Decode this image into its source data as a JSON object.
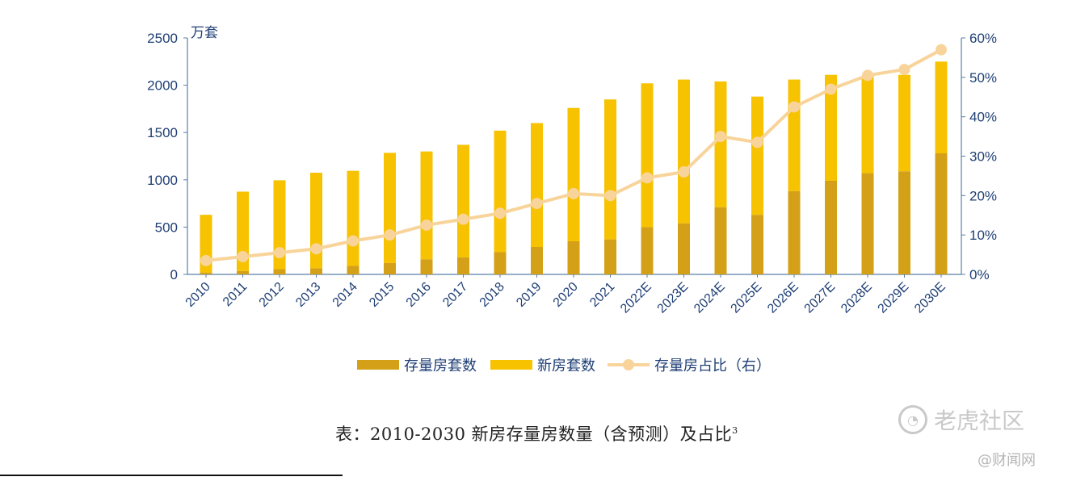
{
  "chart_data": {
    "type": "bar",
    "stacked": true,
    "y_left_unit": "万套",
    "ylim": [
      0,
      2500
    ],
    "y_left_ticks": [
      "0",
      "500",
      "1000",
      "1500",
      "2000",
      "2500"
    ],
    "y_right_lim": [
      0,
      60
    ],
    "y_right_ticks": [
      "0%",
      "10%",
      "20%",
      "30%",
      "40%",
      "50%",
      "60%"
    ],
    "categories": [
      "2010",
      "2011",
      "2012",
      "2013",
      "2014",
      "2015",
      "2016",
      "2017",
      "2018",
      "2019",
      "2020",
      "2021",
      "2022E",
      "2023E",
      "2024E",
      "2025E",
      "2026E",
      "2027E",
      "2028E",
      "2029E",
      "2030E"
    ],
    "series": [
      {
        "name": "存量房套数",
        "kind": "bar",
        "axis": "left",
        "color": "#d4a017",
        "values": [
          20,
          35,
          55,
          65,
          90,
          120,
          160,
          180,
          235,
          290,
          350,
          370,
          500,
          540,
          710,
          630,
          880,
          990,
          1070,
          1090,
          1280
        ]
      },
      {
        "name": "新房套数",
        "kind": "bar",
        "axis": "left",
        "color": "#f7c200",
        "values": [
          610,
          840,
          940,
          1010,
          1005,
          1165,
          1140,
          1190,
          1285,
          1310,
          1410,
          1480,
          1520,
          1520,
          1330,
          1250,
          1180,
          1120,
          1030,
          1020,
          970
        ]
      },
      {
        "name": "存量房占比（右）",
        "kind": "line",
        "axis": "right",
        "color": "#f8d49a",
        "values": [
          3.5,
          4.5,
          5.5,
          6.5,
          8.5,
          10,
          12.5,
          14,
          15.5,
          18,
          20.5,
          20,
          24.5,
          26,
          35,
          33.5,
          42.5,
          47,
          50.5,
          52,
          57
        ]
      }
    ]
  },
  "caption": {
    "text": "表：2010-2030 新房存量房数量（含预测）及占比",
    "sup": "3"
  },
  "watermark": {
    "icon": "tiger-logo-icon",
    "brand": "老虎社区",
    "sub": "@财闻网"
  }
}
